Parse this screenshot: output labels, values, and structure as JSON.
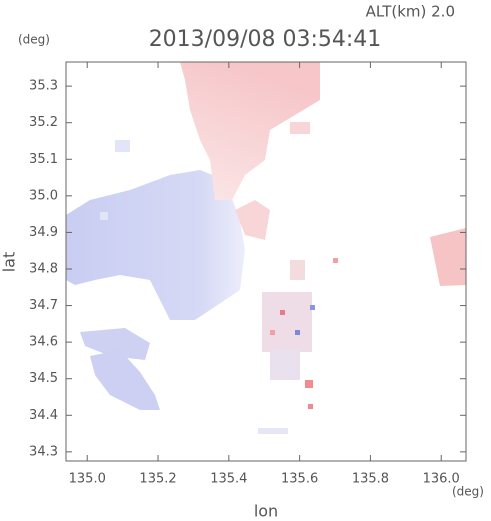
{
  "chart_data": {
    "type": "map",
    "subtitle": "ALT(km) 2.0",
    "title": "2013/09/08 03:54:41",
    "x_label": "lon",
    "y_label": "lat",
    "x_unit": "(deg)",
    "y_unit": "(deg)",
    "xlim": [
      134.94,
      136.07
    ],
    "ylim": [
      34.275,
      35.366
    ],
    "xticks": [
      {
        "value": 135,
        "label": "135.0"
      },
      135.2,
      135.4,
      135.6,
      135.8,
      {
        "value": 136,
        "label": "136.0"
      }
    ],
    "yticks": [
      34.3,
      34.4,
      34.5,
      34.6,
      34.7,
      34.8,
      34.9,
      {
        "value": 35,
        "label": "35.0"
      },
      35.1,
      35.2,
      35.3
    ]
  }
}
